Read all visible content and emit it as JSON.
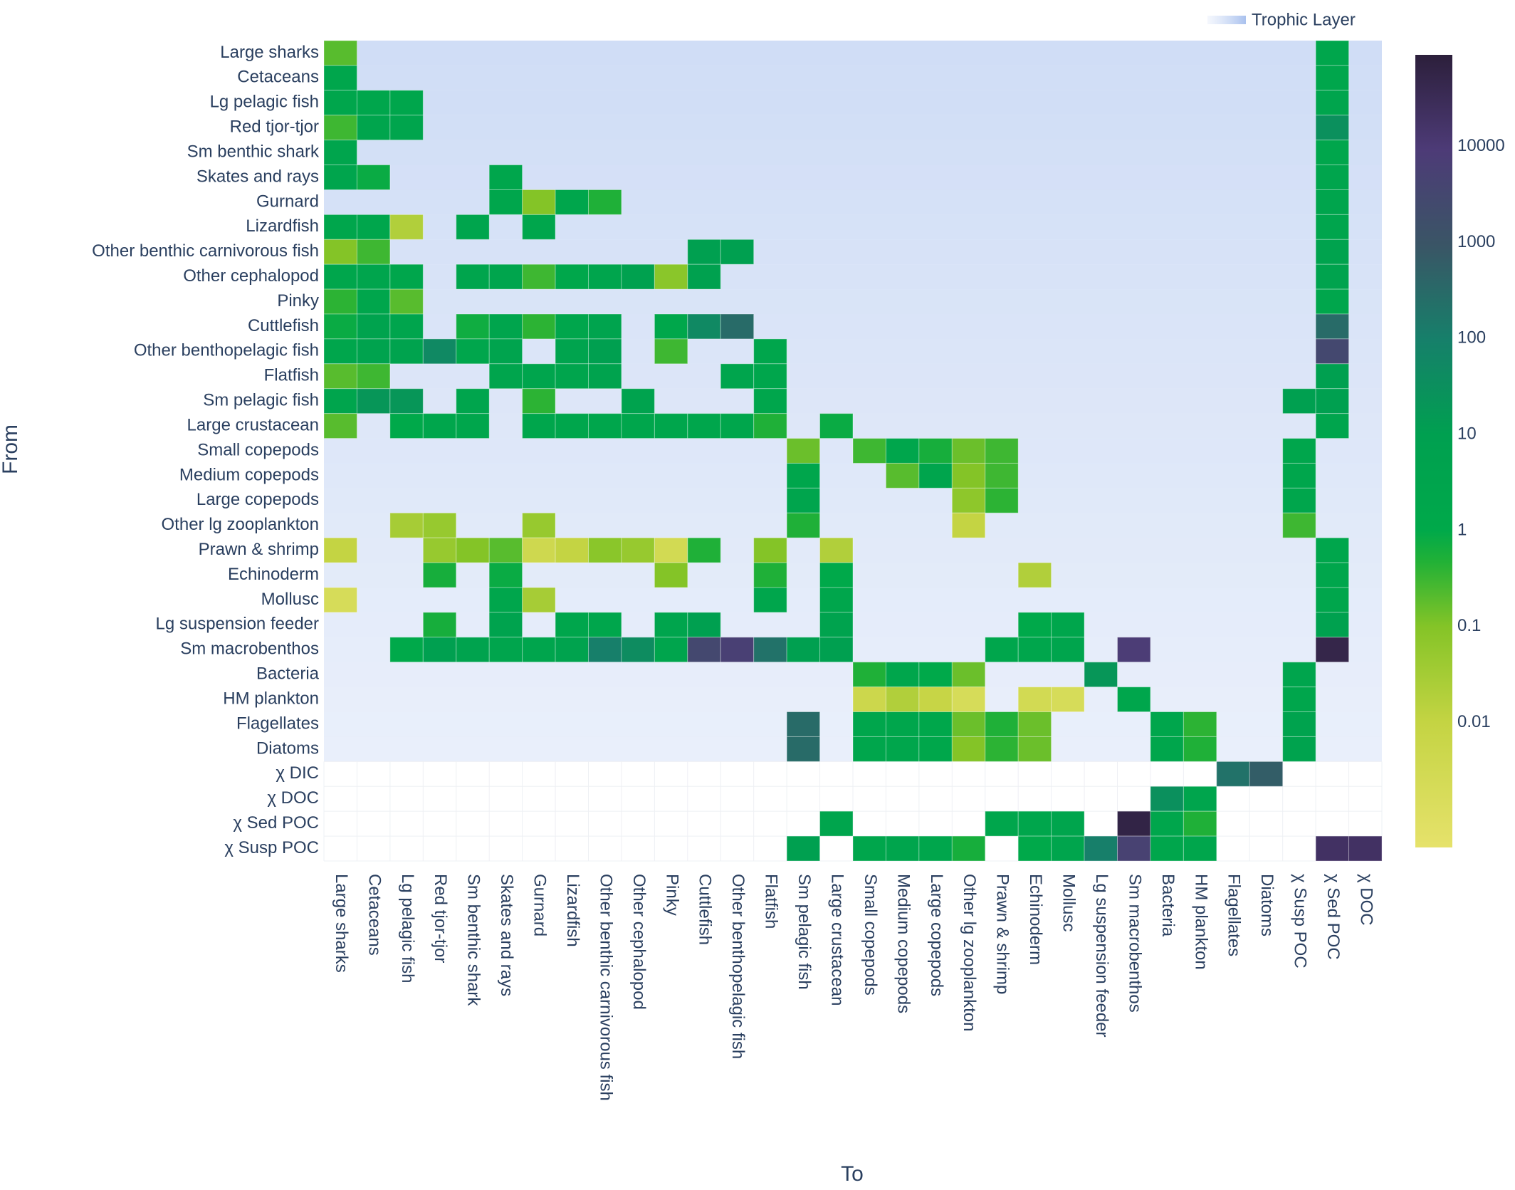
{
  "chart_data": {
    "type": "heatmap",
    "xlabel": "To",
    "ylabel": "From",
    "trophic_layer_label": "Trophic Layer",
    "x": [
      "Large sharks",
      "Cetaceans",
      "Lg pelagic fish",
      "Red tjor-tjor",
      "Sm benthic shark",
      "Skates and rays",
      "Gurnard",
      "Lizardfish",
      "Other benthic carnivorous fish",
      "Other cephalopod",
      "Pinky",
      "Cuttlefish",
      "Other benthopelagic fish",
      "Flatfish",
      "Sm pelagic fish",
      "Large crustacean",
      "Small copepods",
      "Medium copepods",
      "Large copepods",
      "Other lg zooplankton",
      "Prawn & shrimp",
      "Echinoderm",
      "Mollusc",
      "Lg suspension feeder",
      "Sm macrobenthos",
      "Bacteria",
      "HM plankton",
      "Flagellates",
      "Diatoms",
      "χ Susp POC",
      "χ Sed POC",
      "χ DOC"
    ],
    "y": [
      "Large sharks",
      "Cetaceans",
      "Lg pelagic fish",
      "Red tjor-tjor",
      "Sm benthic shark",
      "Skates and rays",
      "Gurnard",
      "Lizardfish",
      "Other benthic carnivorous fish",
      "Other cephalopod",
      "Pinky",
      "Cuttlefish",
      "Other benthopelagic fish",
      "Flatfish",
      "Sm pelagic fish",
      "Large crustacean",
      "Small copepods",
      "Medium copepods",
      "Large copepods",
      "Other lg zooplankton",
      "Prawn & shrimp",
      "Echinoderm",
      "Mollusc",
      "Lg suspension feeder",
      "Sm macrobenthos",
      "Bacteria",
      "HM plankton",
      "Flagellates",
      "Diatoms",
      "χ DIC",
      "χ DOC",
      "χ Sed POC",
      "χ Susp POC"
    ],
    "z": [
      [
        0.2,
        null,
        null,
        null,
        null,
        null,
        null,
        null,
        null,
        null,
        null,
        null,
        null,
        null,
        null,
        null,
        null,
        null,
        null,
        null,
        null,
        null,
        null,
        null,
        null,
        null,
        null,
        null,
        null,
        null,
        2,
        null
      ],
      [
        2,
        null,
        null,
        null,
        null,
        null,
        null,
        null,
        null,
        null,
        null,
        null,
        null,
        null,
        null,
        null,
        null,
        null,
        null,
        null,
        null,
        null,
        null,
        null,
        null,
        null,
        null,
        null,
        null,
        null,
        2,
        null
      ],
      [
        2,
        2,
        2,
        null,
        null,
        null,
        null,
        null,
        null,
        null,
        null,
        null,
        null,
        null,
        null,
        null,
        null,
        null,
        null,
        null,
        null,
        null,
        null,
        null,
        null,
        null,
        null,
        null,
        null,
        null,
        3,
        null
      ],
      [
        0.3,
        3,
        3,
        null,
        null,
        null,
        null,
        null,
        null,
        null,
        null,
        null,
        null,
        null,
        null,
        null,
        null,
        null,
        null,
        null,
        null,
        null,
        null,
        null,
        null,
        null,
        null,
        null,
        null,
        null,
        30,
        null
      ],
      [
        3,
        null,
        null,
        null,
        null,
        null,
        null,
        null,
        null,
        null,
        null,
        null,
        null,
        null,
        null,
        null,
        null,
        null,
        null,
        null,
        null,
        null,
        null,
        null,
        null,
        null,
        null,
        null,
        null,
        null,
        2,
        null
      ],
      [
        3,
        0.8,
        null,
        null,
        null,
        2,
        null,
        null,
        null,
        null,
        null,
        null,
        null,
        null,
        null,
        null,
        null,
        null,
        null,
        null,
        null,
        null,
        null,
        null,
        null,
        null,
        null,
        null,
        null,
        null,
        3,
        null
      ],
      [
        null,
        null,
        null,
        null,
        null,
        2,
        0.1,
        2,
        0.5,
        null,
        null,
        null,
        null,
        null,
        null,
        null,
        null,
        null,
        null,
        null,
        null,
        null,
        null,
        null,
        null,
        null,
        null,
        null,
        null,
        null,
        3,
        null
      ],
      [
        2,
        2,
        0.02,
        null,
        3,
        null,
        2,
        null,
        null,
        null,
        null,
        null,
        null,
        null,
        null,
        null,
        null,
        null,
        null,
        null,
        null,
        null,
        null,
        null,
        null,
        null,
        null,
        null,
        null,
        null,
        3,
        null
      ],
      [
        0.1,
        0.3,
        null,
        null,
        null,
        null,
        null,
        null,
        null,
        null,
        null,
        10,
        10,
        null,
        null,
        null,
        null,
        null,
        null,
        null,
        null,
        null,
        null,
        null,
        null,
        null,
        null,
        null,
        null,
        null,
        5,
        null
      ],
      [
        2,
        3,
        2,
        null,
        3,
        3,
        0.3,
        1.5,
        3,
        8,
        0.08,
        8,
        null,
        null,
        null,
        null,
        null,
        null,
        null,
        null,
        null,
        null,
        null,
        null,
        null,
        null,
        null,
        null,
        null,
        null,
        5,
        null
      ],
      [
        0.4,
        2,
        0.2,
        null,
        null,
        null,
        null,
        null,
        null,
        null,
        null,
        null,
        null,
        null,
        null,
        null,
        null,
        null,
        null,
        null,
        null,
        null,
        null,
        null,
        null,
        null,
        null,
        null,
        null,
        null,
        2,
        null
      ],
      [
        0.8,
        5,
        3,
        null,
        0.7,
        3,
        0.4,
        2,
        4,
        null,
        1.5,
        50,
        300,
        null,
        null,
        null,
        null,
        null,
        null,
        null,
        null,
        null,
        null,
        null,
        null,
        null,
        null,
        null,
        null,
        null,
        300,
        null
      ],
      [
        2,
        5,
        5,
        50,
        2,
        4,
        null,
        4,
        10,
        null,
        0.3,
        null,
        null,
        2,
        null,
        null,
        null,
        null,
        null,
        null,
        null,
        null,
        null,
        null,
        null,
        null,
        null,
        null,
        null,
        null,
        3000,
        null
      ],
      [
        0.2,
        0.3,
        null,
        null,
        null,
        3,
        3,
        3,
        5,
        null,
        null,
        null,
        3,
        2,
        null,
        null,
        null,
        null,
        null,
        null,
        null,
        null,
        null,
        null,
        null,
        null,
        null,
        null,
        null,
        null,
        10,
        null
      ],
      [
        3,
        20,
        20,
        null,
        3,
        null,
        0.4,
        null,
        null,
        5,
        null,
        null,
        null,
        2,
        null,
        null,
        null,
        null,
        null,
        null,
        null,
        null,
        null,
        null,
        null,
        null,
        null,
        null,
        null,
        10,
        10,
        null
      ],
      [
        0.2,
        null,
        1,
        2,
        2,
        null,
        2,
        2,
        2,
        2,
        2,
        2,
        2,
        0.5,
        null,
        0.8,
        null,
        null,
        null,
        null,
        null,
        null,
        null,
        null,
        null,
        null,
        null,
        null,
        null,
        null,
        3,
        null
      ],
      [
        null,
        null,
        null,
        null,
        null,
        null,
        null,
        null,
        null,
        null,
        null,
        null,
        null,
        null,
        0.15,
        null,
        0.3,
        2,
        0.6,
        0.15,
        0.3,
        null,
        null,
        null,
        null,
        null,
        null,
        null,
        null,
        2,
        null,
        null
      ],
      [
        null,
        null,
        null,
        null,
        null,
        null,
        null,
        null,
        null,
        null,
        null,
        null,
        null,
        null,
        2,
        null,
        null,
        0.2,
        3,
        0.1,
        0.3,
        null,
        null,
        null,
        null,
        null,
        null,
        null,
        null,
        2,
        null,
        null
      ],
      [
        null,
        null,
        null,
        null,
        null,
        null,
        null,
        null,
        null,
        null,
        null,
        null,
        null,
        null,
        3,
        null,
        null,
        null,
        null,
        0.07,
        0.4,
        null,
        null,
        null,
        null,
        null,
        null,
        null,
        null,
        2,
        null,
        null
      ],
      [
        null,
        null,
        0.03,
        0.05,
        null,
        null,
        0.05,
        null,
        null,
        null,
        null,
        null,
        null,
        null,
        0.5,
        null,
        null,
        null,
        null,
        0.01,
        null,
        null,
        null,
        null,
        null,
        null,
        null,
        null,
        null,
        0.3,
        null,
        null
      ],
      [
        0.01,
        null,
        null,
        0.05,
        0.1,
        0.2,
        0.004,
        0.01,
        0.08,
        0.05,
        0.003,
        0.5,
        null,
        0.1,
        null,
        0.02,
        null,
        null,
        null,
        null,
        null,
        null,
        null,
        null,
        null,
        null,
        null,
        null,
        null,
        null,
        2,
        null
      ],
      [
        null,
        null,
        null,
        0.6,
        null,
        0.8,
        null,
        null,
        null,
        null,
        0.1,
        null,
        null,
        0.5,
        null,
        1,
        null,
        null,
        null,
        null,
        null,
        0.02,
        null,
        null,
        null,
        null,
        null,
        null,
        null,
        null,
        2,
        null
      ],
      [
        0.002,
        null,
        null,
        null,
        null,
        2,
        0.03,
        null,
        null,
        null,
        null,
        null,
        null,
        2,
        null,
        2,
        null,
        null,
        null,
        null,
        null,
        null,
        null,
        null,
        null,
        null,
        null,
        null,
        null,
        null,
        2,
        null
      ],
      [
        null,
        null,
        null,
        0.6,
        null,
        5,
        null,
        2,
        2,
        null,
        3,
        10,
        null,
        null,
        null,
        5,
        null,
        null,
        null,
        null,
        null,
        1,
        2,
        null,
        null,
        null,
        null,
        null,
        null,
        null,
        8,
        null
      ],
      [
        null,
        null,
        1,
        10,
        5,
        3,
        3,
        5,
        100,
        40,
        3,
        3000,
        6000,
        200,
        10,
        10,
        null,
        null,
        null,
        null,
        2,
        2,
        3,
        null,
        8000,
        null,
        null,
        null,
        null,
        null,
        50000,
        null
      ],
      [
        null,
        null,
        null,
        null,
        null,
        null,
        null,
        null,
        null,
        null,
        null,
        null,
        null,
        null,
        null,
        null,
        0.5,
        2,
        1,
        0.15,
        null,
        null,
        null,
        20,
        null,
        null,
        null,
        null,
        null,
        3,
        null,
        null
      ],
      [
        null,
        null,
        null,
        null,
        null,
        null,
        null,
        null,
        null,
        null,
        null,
        null,
        null,
        null,
        null,
        null,
        0.005,
        0.02,
        0.008,
        0.002,
        null,
        0.003,
        0.002,
        null,
        2,
        null,
        null,
        null,
        null,
        2,
        null,
        null
      ],
      [
        null,
        null,
        null,
        null,
        null,
        null,
        null,
        null,
        null,
        null,
        null,
        null,
        null,
        null,
        300,
        null,
        2,
        2,
        1.5,
        0.15,
        0.5,
        0.15,
        null,
        null,
        null,
        2,
        0.4,
        null,
        null,
        5,
        null,
        null
      ],
      [
        null,
        null,
        null,
        null,
        null,
        null,
        null,
        null,
        null,
        null,
        null,
        null,
        null,
        null,
        300,
        null,
        2,
        2,
        1.5,
        0.1,
        0.4,
        0.15,
        null,
        null,
        null,
        2,
        0.5,
        null,
        null,
        5,
        null,
        null
      ],
      [
        null,
        null,
        null,
        null,
        null,
        null,
        null,
        null,
        null,
        null,
        null,
        null,
        null,
        null,
        null,
        null,
        null,
        null,
        null,
        null,
        null,
        null,
        null,
        null,
        null,
        null,
        null,
        200,
        600,
        null,
        null,
        null
      ],
      [
        null,
        null,
        null,
        null,
        null,
        null,
        null,
        null,
        null,
        null,
        null,
        null,
        null,
        null,
        null,
        null,
        null,
        null,
        null,
        null,
        null,
        null,
        null,
        null,
        null,
        30,
        3,
        null,
        null,
        null,
        null,
        null
      ],
      [
        null,
        null,
        null,
        null,
        null,
        null,
        null,
        null,
        null,
        null,
        null,
        null,
        null,
        null,
        null,
        3,
        null,
        null,
        null,
        null,
        2,
        2,
        3,
        null,
        60000,
        2,
        0.5,
        null,
        null,
        null,
        null,
        null
      ],
      [
        null,
        null,
        null,
        null,
        null,
        null,
        null,
        null,
        null,
        null,
        null,
        null,
        null,
        null,
        10,
        null,
        2,
        3,
        2,
        0.6,
        null,
        1,
        3,
        100,
        5000,
        2,
        2,
        null,
        null,
        null,
        20000,
        20000
      ]
    ],
    "zlim": [
      0.0005,
      90000
    ],
    "zticks": [
      0.01,
      0.1,
      1,
      10,
      100,
      1000,
      10000
    ],
    "log_scale": true,
    "colorscale": [
      [
        0,
        "#e6e26b"
      ],
      [
        0.158,
        "#c4d443"
      ],
      [
        0.279,
        "#84c427"
      ],
      [
        0.36,
        "#22b136"
      ],
      [
        0.4,
        "#00a94a"
      ],
      [
        0.52,
        "#00a050"
      ],
      [
        0.64,
        "#16806a"
      ],
      [
        0.76,
        "#3a5566"
      ],
      [
        0.88,
        "#4d3b77"
      ],
      [
        1,
        "#2c1f3b"
      ]
    ]
  }
}
